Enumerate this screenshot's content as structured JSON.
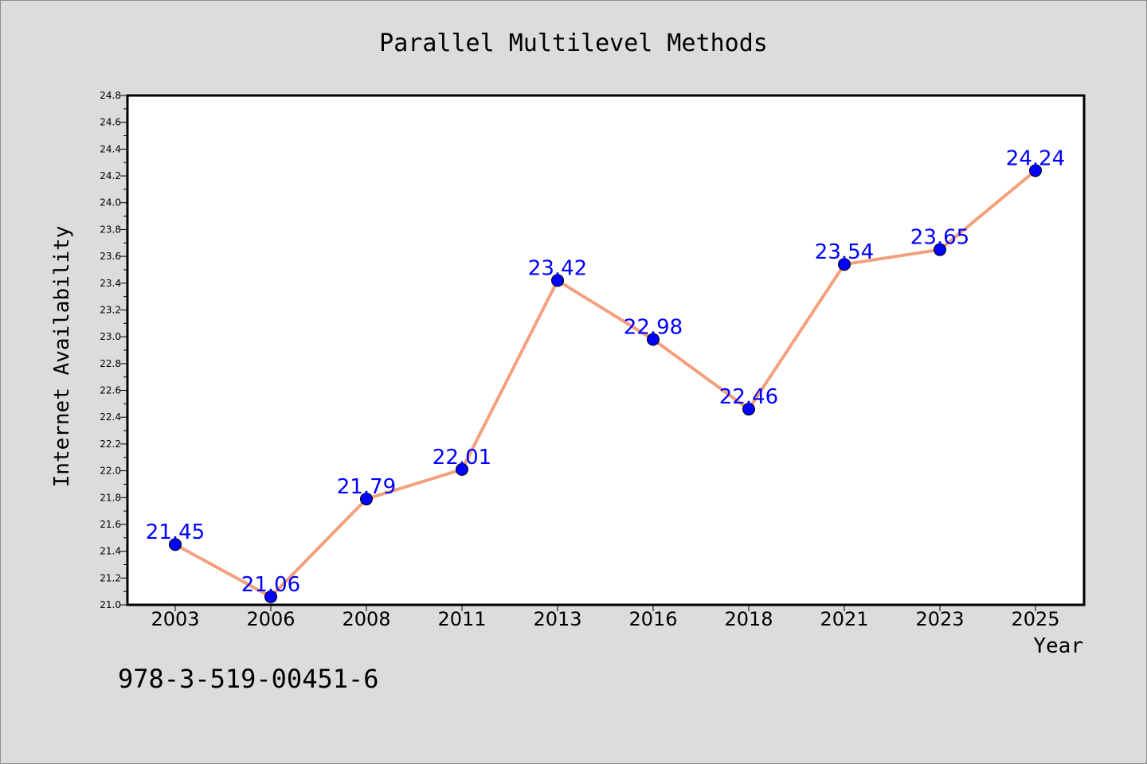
{
  "chart_data": {
    "type": "line",
    "title": "Parallel Multilevel Methods",
    "xlabel": "Year",
    "ylabel": "Internet Availability",
    "categories": [
      "2003",
      "2006",
      "2008",
      "2011",
      "2013",
      "2016",
      "2018",
      "2021",
      "2023",
      "2025"
    ],
    "series": [
      {
        "values": [
          21.45,
          21.06,
          21.79,
          22.01,
          23.42,
          22.98,
          22.46,
          23.54,
          23.65,
          24.24
        ],
        "line_color": "#f4a07c",
        "marker_color": "#0000ff"
      }
    ],
    "data_labels": [
      "21.45",
      "21.06",
      "21.79",
      "22.01",
      "23.42",
      "22.98",
      "22.46",
      "23.54",
      "23.65",
      "24.24"
    ],
    "ylim": [
      21.0,
      24.8
    ],
    "yticks": [
      "21.0",
      "21.2",
      "21.4",
      "21.6",
      "21.8",
      "22.0",
      "22.2",
      "22.4",
      "22.6",
      "22.8",
      "23.0",
      "23.2",
      "23.4",
      "23.6",
      "23.8",
      "24.0",
      "24.2",
      "24.4",
      "24.6",
      "24.8"
    ],
    "grid": false,
    "legend": "none"
  },
  "annotation": "978-3-519-00451-6"
}
